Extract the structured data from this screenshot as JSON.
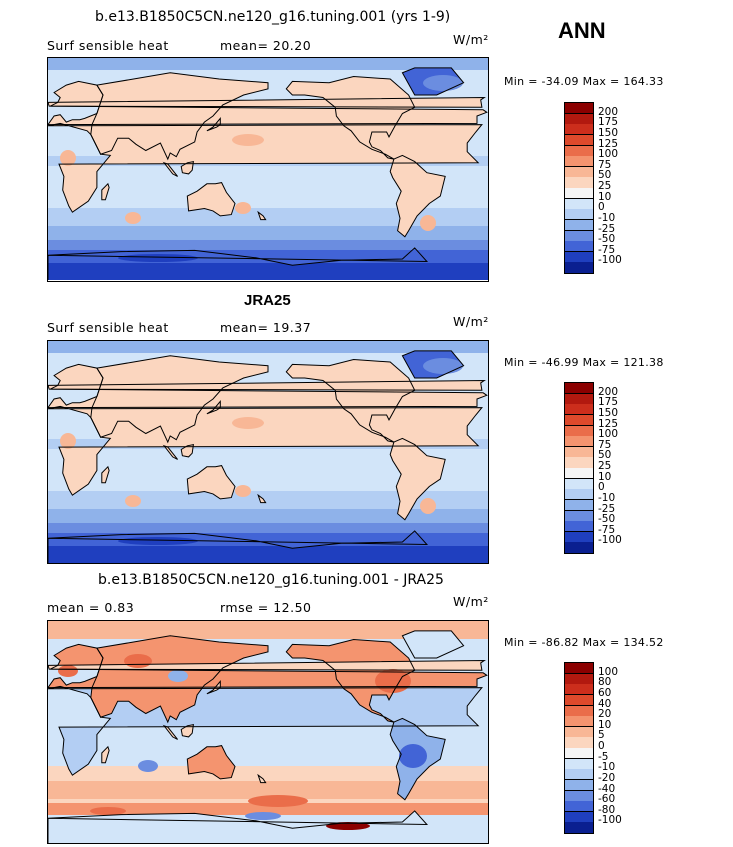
{
  "season": "ANN",
  "panels": [
    {
      "title": "b.e13.B1850C5CN.ne120_g16.tuning.001 (yrs 1-9)",
      "variable": "Surf sensible heat",
      "stat_text": "mean=  20.20",
      "units": "W/m²",
      "minmax": "Min = -34.09 Max = 164.33",
      "colorbar": {
        "labels": [
          "200",
          "175",
          "150",
          "125",
          "100",
          "75",
          "50",
          "25",
          "10",
          "0",
          "-10",
          "-25",
          "-50",
          "-75",
          "-100"
        ],
        "colors": [
          "#8b0000",
          "#b2190f",
          "#cc2e1c",
          "#dd4a2c",
          "#ea6d4a",
          "#f4946f",
          "#f8b796",
          "#fbd6bf",
          "#f5f5f5",
          "#d2e5f9",
          "#b3cef3",
          "#8fb2ea",
          "#6b8de0",
          "#4264d6",
          "#1f3fbf",
          "#0a1f90"
        ]
      },
      "chart_data": {
        "type": "heatmap",
        "description_value": "global lat-lon filled contour",
        "levels": [
          -100,
          -75,
          -50,
          -25,
          -10,
          0,
          10,
          25,
          50,
          75,
          100,
          125,
          150,
          175,
          200
        ],
        "mean": 20.2,
        "min": -34.09,
        "max": 164.33
      }
    },
    {
      "title": "JRA25",
      "variable": "Surf sensible heat",
      "stat_text": "mean=  19.37",
      "units": "W/m²",
      "minmax": "Min = -46.99 Max = 121.38",
      "colorbar": {
        "labels": [
          "200",
          "175",
          "150",
          "125",
          "100",
          "75",
          "50",
          "25",
          "10",
          "0",
          "-10",
          "-25",
          "-50",
          "-75",
          "-100"
        ],
        "colors": [
          "#8b0000",
          "#b2190f",
          "#cc2e1c",
          "#dd4a2c",
          "#ea6d4a",
          "#f4946f",
          "#f8b796",
          "#fbd6bf",
          "#f5f5f5",
          "#d2e5f9",
          "#b3cef3",
          "#8fb2ea",
          "#6b8de0",
          "#4264d6",
          "#1f3fbf",
          "#0a1f90"
        ]
      },
      "chart_data": {
        "type": "heatmap",
        "levels": [
          -100,
          -75,
          -50,
          -25,
          -10,
          0,
          10,
          25,
          50,
          75,
          100,
          125,
          150,
          175,
          200
        ],
        "mean": 19.37,
        "min": -46.99,
        "max": 121.38
      }
    },
    {
      "title": "b.e13.B1850C5CN.ne120_g16.tuning.001 - JRA25",
      "variable": "mean =    0.83",
      "stat_text": "rmse =   12.50",
      "units": "W/m²",
      "minmax": "Min = -86.82 Max = 134.52",
      "colorbar": {
        "labels": [
          "100",
          "80",
          "60",
          "40",
          "20",
          "10",
          "5",
          "0",
          "-5",
          "-10",
          "-20",
          "-40",
          "-60",
          "-80",
          "-100"
        ],
        "colors": [
          "#8b0000",
          "#b2190f",
          "#cc2e1c",
          "#dd4a2c",
          "#ea6d4a",
          "#f4946f",
          "#f8b796",
          "#fbd6bf",
          "#f5f5f5",
          "#d2e5f9",
          "#b3cef3",
          "#8fb2ea",
          "#6b8de0",
          "#4264d6",
          "#1f3fbf",
          "#0a1f90"
        ]
      },
      "chart_data": {
        "type": "heatmap",
        "levels": [
          -100,
          -80,
          -60,
          -40,
          -20,
          -10,
          -5,
          0,
          5,
          10,
          20,
          40,
          60,
          80,
          100
        ],
        "mean": 0.83,
        "rmse": 12.5,
        "min": -86.82,
        "max": 134.52
      }
    }
  ]
}
